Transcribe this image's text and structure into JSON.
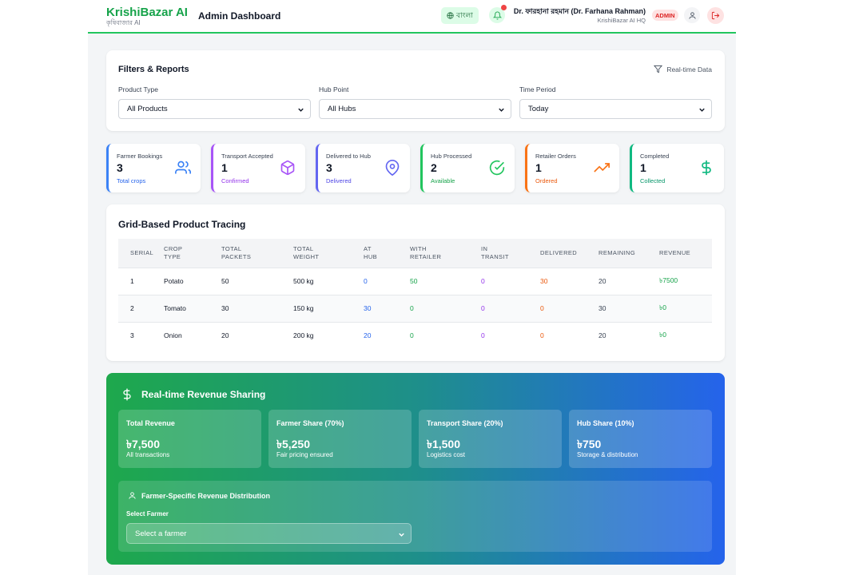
{
  "header": {
    "brand_name": "KrishiBazar AI",
    "brand_sub": "কৃষিবাজার AI",
    "title": "Admin Dashboard",
    "lang_label": "বাংলা",
    "user_name": "Dr. ফারহানা রহমান (Dr. Farhana Rahman)",
    "user_org": "KrishiBazar AI HQ",
    "role": "ADMIN"
  },
  "filters": {
    "title": "Filters & Reports",
    "realtime": "Real-time Data",
    "product_label": "Product Type",
    "product_value": "All Products",
    "hub_label": "Hub Point",
    "hub_value": "All Hubs",
    "time_label": "Time Period",
    "time_value": "Today"
  },
  "stats": [
    {
      "label": "Farmer Bookings",
      "value": "3",
      "sub": "Total crops",
      "color": "#3b82f6",
      "icon": "users-icon"
    },
    {
      "label": "Transport Accepted",
      "value": "1",
      "sub": "Confirmed",
      "color": "#a855f7",
      "icon": "package-icon"
    },
    {
      "label": "Delivered to Hub",
      "value": "3",
      "sub": "Delivered",
      "color": "#6366f1",
      "icon": "map-pin-icon"
    },
    {
      "label": "Hub Processed",
      "value": "2",
      "sub": "Available",
      "color": "#22c55e",
      "icon": "check-circle-icon"
    },
    {
      "label": "Retailer Orders",
      "value": "1",
      "sub": "Ordered",
      "color": "#f97316",
      "icon": "trending-up-icon"
    },
    {
      "label": "Completed",
      "value": "1",
      "sub": "Collected",
      "color": "#10b981",
      "icon": "dollar-icon"
    }
  ],
  "tracing": {
    "title": "Grid-Based Product Tracing",
    "headers": [
      [
        "SERIAL"
      ],
      [
        "CROP",
        "TYPE"
      ],
      [
        "TOTAL",
        "PACKETS"
      ],
      [
        "TOTAL",
        "WEIGHT"
      ],
      [
        "AT",
        "HUB"
      ],
      [
        "WITH",
        "RETAILER"
      ],
      [
        "IN",
        "TRANSIT"
      ],
      [
        "DELIVERED"
      ],
      [
        "REMAINING"
      ],
      [
        "REVENUE"
      ]
    ],
    "rows": [
      [
        "1",
        "Potato",
        "50",
        "500 kg",
        "0",
        "50",
        "0",
        "30",
        "20",
        "৳7500"
      ],
      [
        "2",
        "Tomato",
        "30",
        "150 kg",
        "30",
        "0",
        "0",
        "0",
        "30",
        "৳0"
      ],
      [
        "3",
        "Onion",
        "20",
        "200 kg",
        "20",
        "0",
        "0",
        "0",
        "20",
        "৳0"
      ]
    ]
  },
  "revenue": {
    "title": "Real-time Revenue Sharing",
    "cards": [
      {
        "label": "Total Revenue",
        "value": "৳7,500",
        "sub": "All transactions"
      },
      {
        "label": "Farmer Share (70%)",
        "value": "৳5,250",
        "sub": "Fair pricing ensured"
      },
      {
        "label": "Transport Share (20%)",
        "value": "৳1,500",
        "sub": "Logistics cost"
      },
      {
        "label": "Hub Share (10%)",
        "value": "৳750",
        "sub": "Storage & distribution"
      }
    ],
    "farmer_title": "Farmer-Specific Revenue Distribution",
    "select_label": "Select Farmer",
    "select_placeholder": "Select a farmer"
  }
}
